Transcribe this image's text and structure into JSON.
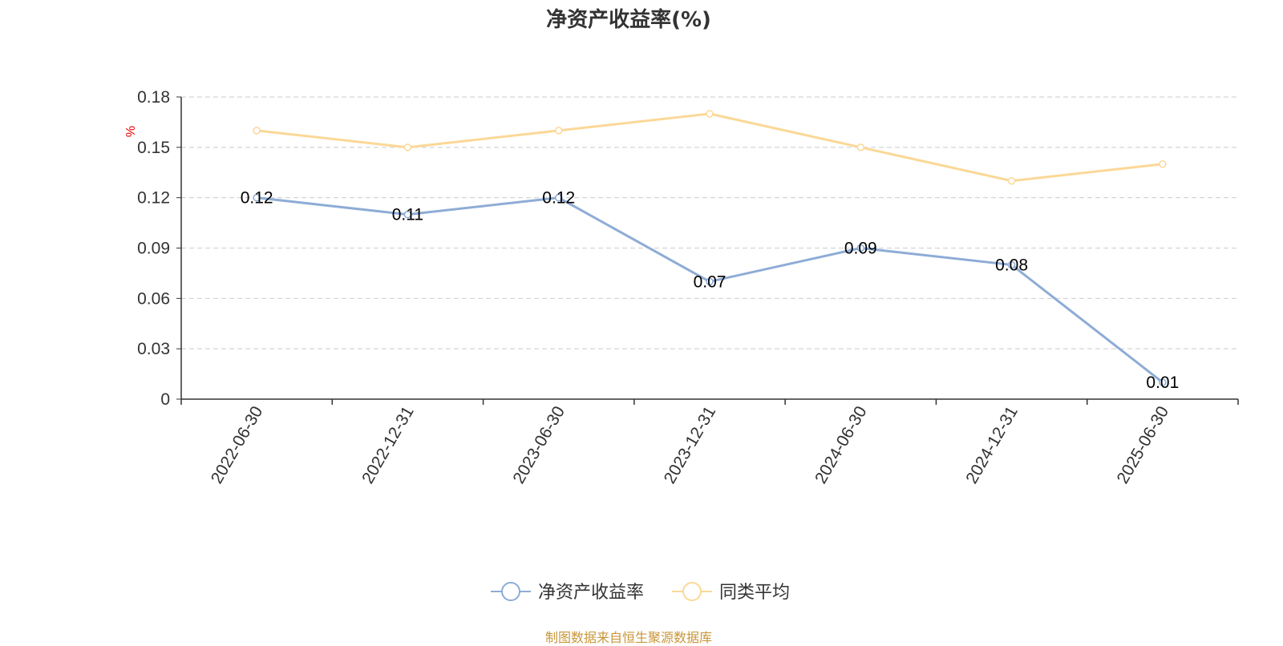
{
  "chart_data": {
    "type": "line",
    "title": "净资产收益率(%)",
    "ylabel": "%",
    "xlabel": "",
    "categories": [
      "2022-06-30",
      "2022-12-31",
      "2023-06-30",
      "2023-12-31",
      "2024-06-30",
      "2024-12-31",
      "2025-06-30"
    ],
    "ylim": [
      0,
      0.18
    ],
    "yticks": [
      "0",
      "0.03",
      "0.06",
      "0.09",
      "0.12",
      "0.15",
      "0.18"
    ],
    "grid": true,
    "legend_position": "bottom",
    "series": [
      {
        "name": "净资产收益率",
        "values": [
          0.12,
          0.11,
          0.12,
          0.07,
          0.09,
          0.08,
          0.01
        ],
        "labels": [
          "0.12",
          "0.11",
          "0.12",
          "0.07",
          "0.09",
          "0.08",
          "0.01"
        ],
        "color": "#8eacd6",
        "show_labels": true
      },
      {
        "name": "同类平均",
        "values": [
          0.16,
          0.15,
          0.16,
          0.17,
          0.15,
          0.13,
          0.14
        ],
        "color": "#fbd897",
        "show_labels": false
      }
    ]
  },
  "source_note": "制图数据来自恒生聚源数据库",
  "colors": {
    "axis": "#333333",
    "grid": "#cccccc",
    "ylabel": "#e60000",
    "source": "#c9963a"
  }
}
